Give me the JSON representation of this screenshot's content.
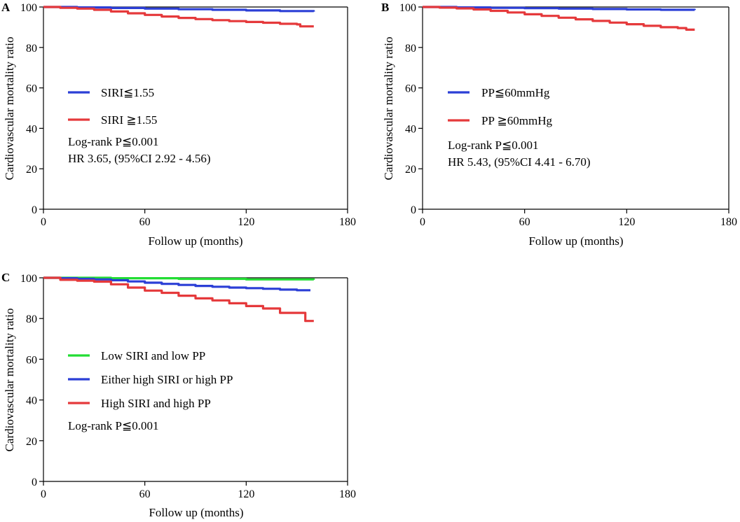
{
  "chart_data": [
    {
      "panel": "A",
      "type": "line",
      "xlabel": "Follow up (months)",
      "ylabel": "Cardiovascular mortality ratio",
      "xlim": [
        0,
        180
      ],
      "ylim": [
        0,
        100
      ],
      "xticks": [
        0,
        60,
        120,
        180
      ],
      "yticks": [
        0,
        20,
        40,
        60,
        80,
        100
      ],
      "series": [
        {
          "name": "SIRI≦1.55",
          "color": "#2b3fd6",
          "x": [
            0,
            20,
            40,
            60,
            80,
            100,
            120,
            140,
            160
          ],
          "y": [
            100,
            99.8,
            99.5,
            99.2,
            98.9,
            98.6,
            98.3,
            98.0,
            97.7
          ]
        },
        {
          "name": "SIRI ≧1.55",
          "color": "#e5393b",
          "x": [
            0,
            10,
            20,
            30,
            40,
            50,
            60,
            70,
            80,
            90,
            100,
            110,
            120,
            130,
            140,
            150,
            152,
            160
          ],
          "y": [
            100,
            99.6,
            99.2,
            98.6,
            97.8,
            96.9,
            96.1,
            95.3,
            94.6,
            94.0,
            93.5,
            93.0,
            92.6,
            92.2,
            91.7,
            91.4,
            90.4,
            90.4
          ]
        }
      ],
      "annotations": [
        "Log-rank P≦0.001",
        "HR 3.65, (95%CI 2.92 - 4.56)"
      ]
    },
    {
      "panel": "B",
      "type": "line",
      "xlabel": "Follow up (months)",
      "ylabel": "Cardiovascular mortality ratio",
      "xlim": [
        0,
        180
      ],
      "ylim": [
        0,
        100
      ],
      "xticks": [
        0,
        60,
        120,
        180
      ],
      "yticks": [
        0,
        20,
        40,
        60,
        80,
        100
      ],
      "series": [
        {
          "name": "PP≦60mmHg",
          "color": "#2b3fd6",
          "x": [
            0,
            20,
            40,
            60,
            80,
            100,
            120,
            140,
            160
          ],
          "y": [
            100,
            99.8,
            99.6,
            99.4,
            99.2,
            99.0,
            98.8,
            98.6,
            98.5
          ]
        },
        {
          "name": "PP ≧60mmHg",
          "color": "#e5393b",
          "x": [
            0,
            10,
            20,
            30,
            40,
            50,
            60,
            70,
            80,
            90,
            100,
            110,
            120,
            130,
            140,
            150,
            155,
            160
          ],
          "y": [
            100,
            99.7,
            99.3,
            98.8,
            98.1,
            97.3,
            96.4,
            95.6,
            94.7,
            93.9,
            93.1,
            92.3,
            91.5,
            90.7,
            90.0,
            89.6,
            88.8,
            88.8
          ]
        }
      ],
      "annotations": [
        "Log-rank P≦0.001",
        "HR 5.43, (95%CI 4.41 - 6.70)"
      ]
    },
    {
      "panel": "C",
      "type": "line",
      "xlabel": "Follow up (months)",
      "ylabel": "Cardiovascular mortality ratio",
      "xlim": [
        0,
        180
      ],
      "ylim": [
        0,
        100
      ],
      "xticks": [
        0,
        60,
        120,
        180
      ],
      "yticks": [
        0,
        20,
        40,
        60,
        80,
        100
      ],
      "series": [
        {
          "name": "Low SIRI and low PP",
          "color": "#22dd33",
          "x": [
            0,
            40,
            80,
            120,
            160
          ],
          "y": [
            100,
            99.8,
            99.5,
            99.2,
            99.0
          ]
        },
        {
          "name": "Either high SIRI or high PP",
          "color": "#2b3fd6",
          "x": [
            0,
            10,
            20,
            30,
            40,
            50,
            60,
            70,
            80,
            90,
            100,
            110,
            120,
            130,
            140,
            150,
            158
          ],
          "y": [
            100,
            99.8,
            99.5,
            99.2,
            98.8,
            98.2,
            97.6,
            97.0,
            96.5,
            96.0,
            95.6,
            95.2,
            94.9,
            94.6,
            94.2,
            93.9,
            93.9
          ]
        },
        {
          "name": "High SIRI and high PP",
          "color": "#e5393b",
          "x": [
            0,
            10,
            20,
            30,
            40,
            50,
            60,
            70,
            80,
            90,
            100,
            110,
            120,
            130,
            140,
            150,
            152,
            155,
            160
          ],
          "y": [
            100,
            99.0,
            98.6,
            98.1,
            96.8,
            95.2,
            93.7,
            92.6,
            91.2,
            89.9,
            88.9,
            87.5,
            86.1,
            84.9,
            82.8,
            82.8,
            82.8,
            78.8,
            78.8
          ]
        }
      ],
      "annotations": [
        "Log-rank P≦0.001"
      ]
    }
  ]
}
